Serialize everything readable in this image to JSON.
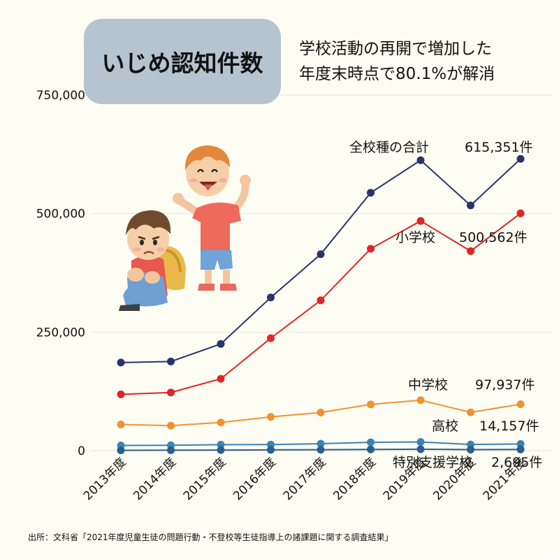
{
  "title": "いじめ認知件数",
  "subtitle": [
    "学校活動の再開で増加した",
    "年度末時点で80.1%が解消"
  ],
  "source": "出所：文科省「2021年度児童生徒の問題行動・不登校等生徒指導上の諸課題に関する調査結果」",
  "colors": {
    "background": "#fdfdf3",
    "title_box": "#b6c4cf",
    "total": "#28346b",
    "elementary": "#e02527",
    "junior_high": "#f0922e",
    "high_school": "#3b82b6",
    "special_support": "#2a5f8f",
    "gridline": "#e4e4da"
  },
  "illustration": {
    "icons": [
      "sad-boy-with-backpack-icon",
      "teasing-boy-icon"
    ]
  },
  "chart_data": {
    "type": "line",
    "title": "",
    "xlabel": "",
    "ylabel": "",
    "categories": [
      "2013年度",
      "2014年度",
      "2015年度",
      "2016年度",
      "2017年度",
      "2018年度",
      "2019年度",
      "2020年度",
      "2021年度"
    ],
    "yticks": [
      "750,000",
      "500,000",
      "250,000",
      "0"
    ],
    "ytick_values": [
      750000,
      500000,
      250000,
      0
    ],
    "ylim": [
      0,
      750000
    ],
    "grid": true,
    "series": [
      {
        "key": "total",
        "values": [
          185803,
          188072,
          225132,
          323143,
          414378,
          543933,
          612496,
          517163,
          615351
        ],
        "label_name": "全校種の合計",
        "label_value": "615,351件"
      },
      {
        "key": "elementary",
        "values": [
          118748,
          122734,
          151692,
          237256,
          317121,
          425844,
          484545,
          420897,
          500562
        ],
        "label_name": "小学校",
        "label_value": "500,562件"
      },
      {
        "key": "junior_high",
        "values": [
          55248,
          52971,
          59502,
          71309,
          80424,
          97704,
          106524,
          80877,
          97937
        ],
        "label_name": "中学校",
        "label_value": "97,937件"
      },
      {
        "key": "high_school",
        "values": [
          11039,
          11404,
          12664,
          12874,
          14789,
          17709,
          18352,
          13126,
          14157
        ],
        "label_name": "高校",
        "label_value": "14,157件"
      },
      {
        "key": "special_support",
        "values": [
          768,
          963,
          1274,
          1704,
          2044,
          2676,
          3075,
          2263,
          2695
        ],
        "label_name": "特別支援学校",
        "label_value": "2,695件"
      }
    ]
  }
}
